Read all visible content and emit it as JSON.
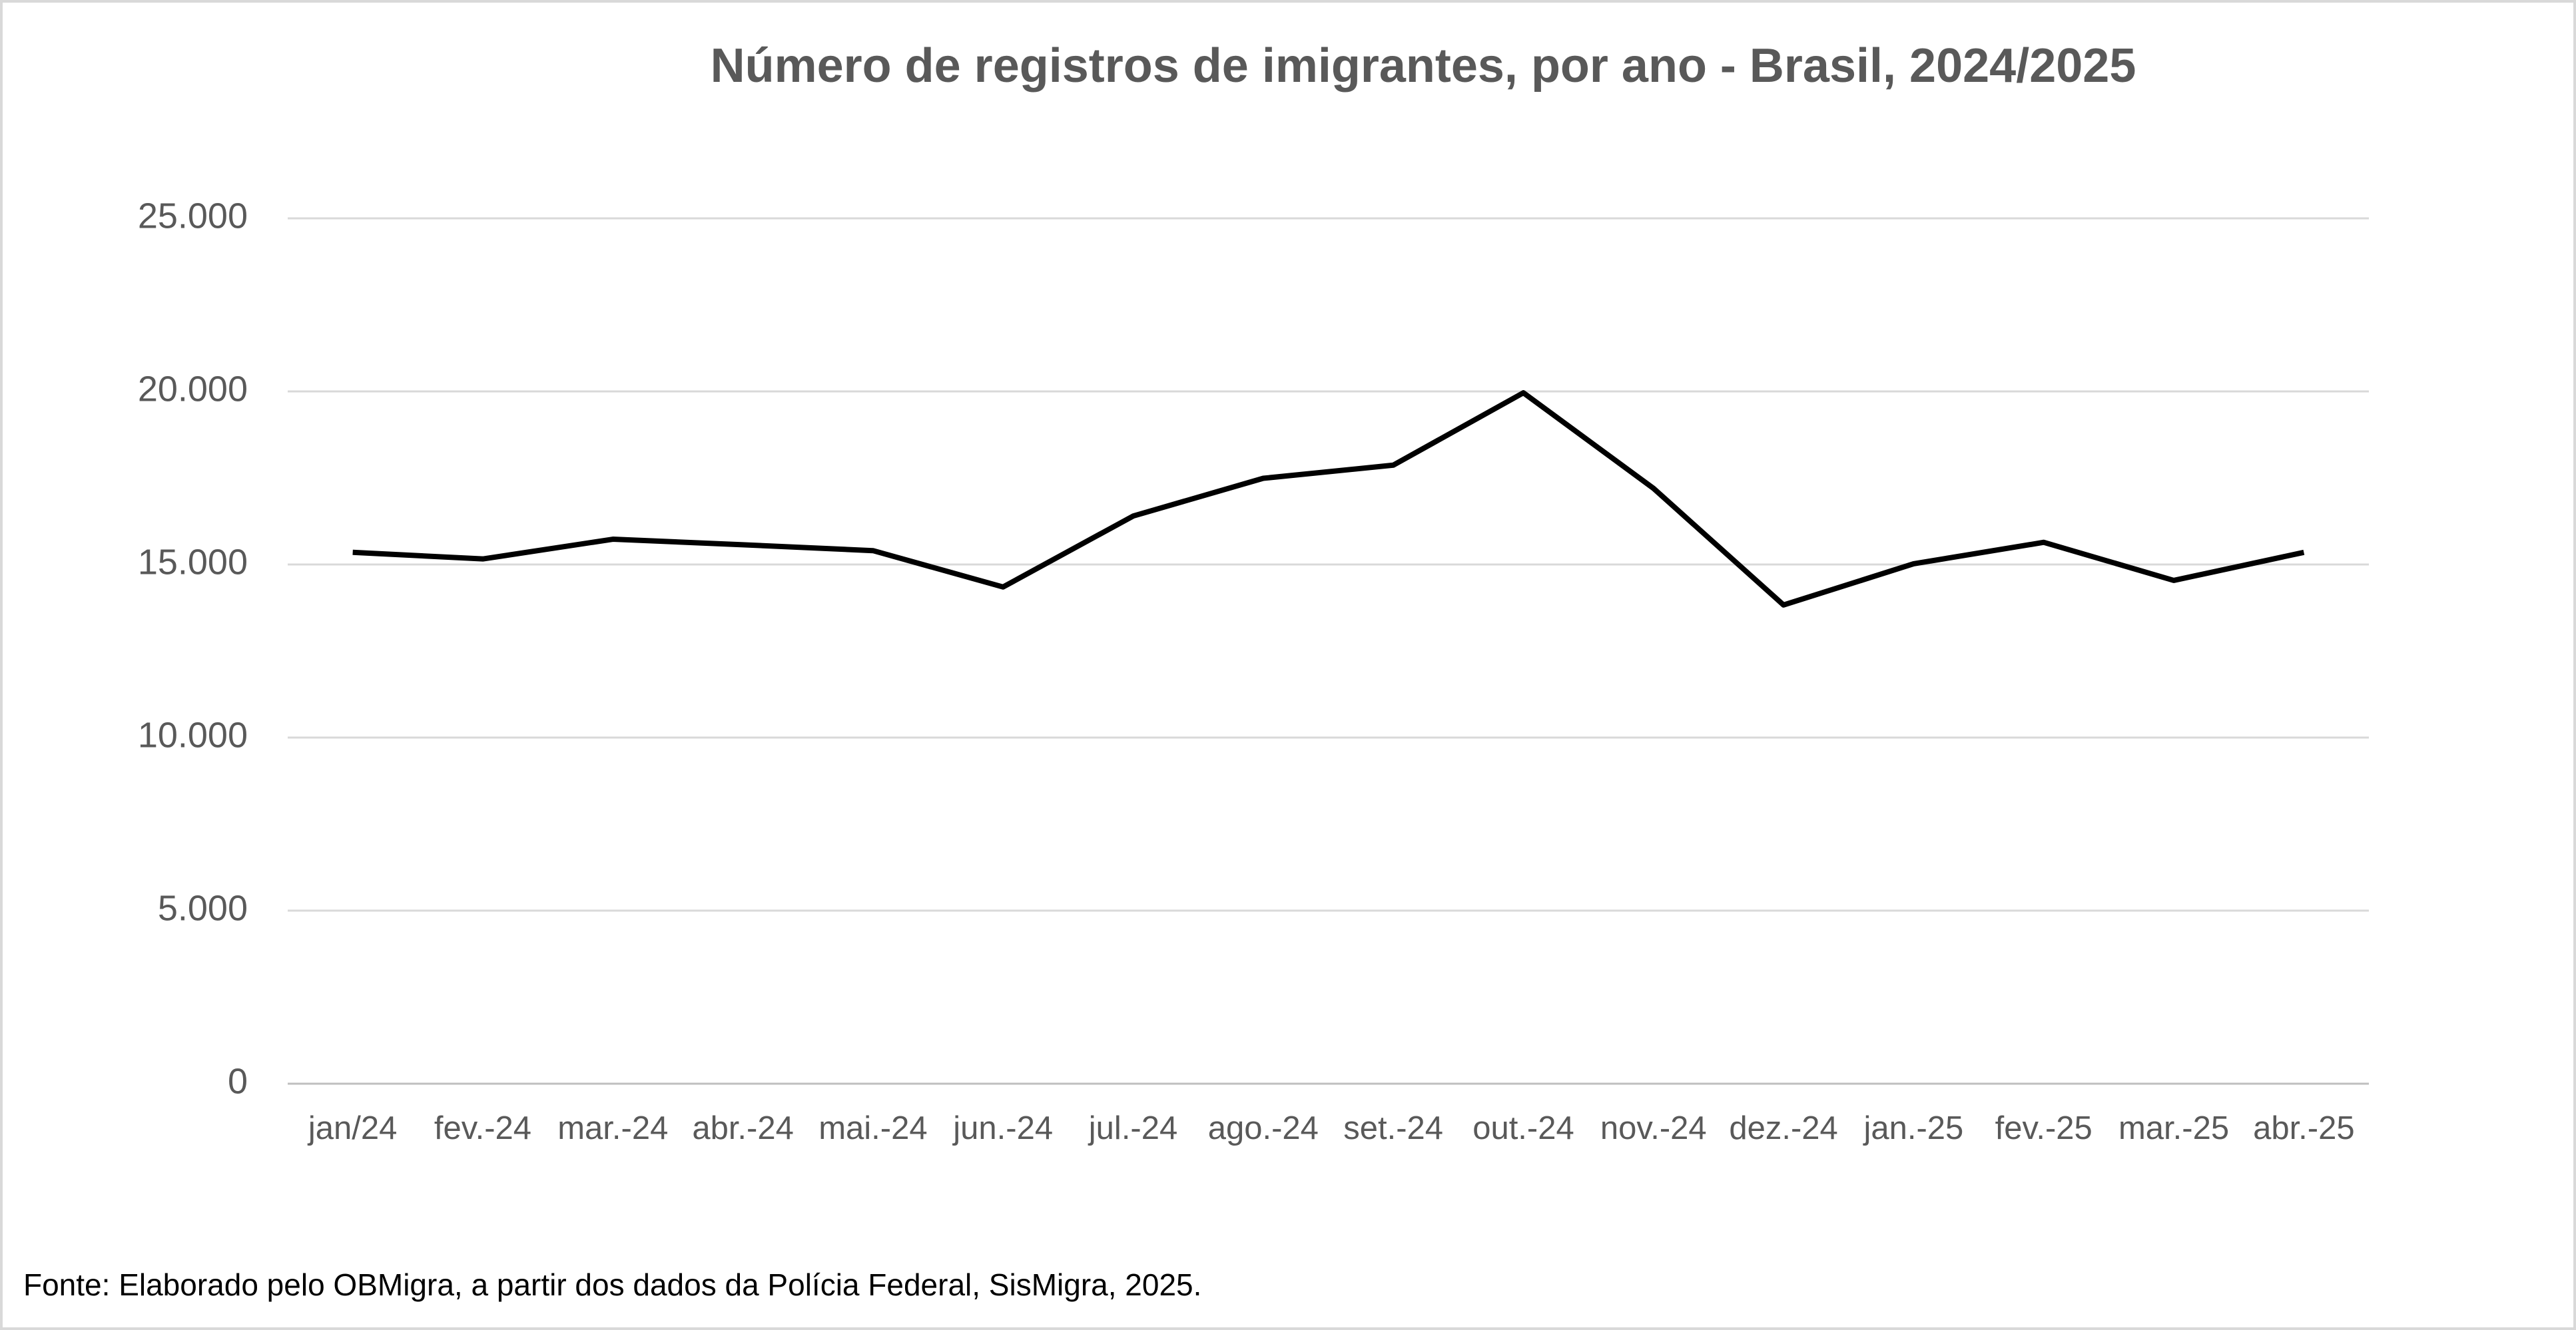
{
  "chart_data": {
    "type": "line",
    "title": "Número de registros de imigrantes, por ano - Brasil, 2024/2025",
    "categories": [
      "jan/24",
      "fev.-24",
      "mar.-24",
      "abr.-24",
      "mai.-24",
      "jun.-24",
      "jul.-24",
      "ago.-24",
      "set.-24",
      "out.-24",
      "nov.-24",
      "dez.-24",
      "jan.-25",
      "fev.-25",
      "mar.-25",
      "abr.-25"
    ],
    "values": [
      15350,
      15160,
      15730,
      15570,
      15400,
      14350,
      16400,
      17490,
      17870,
      19960,
      17200,
      13830,
      15020,
      15640,
      14540,
      15350
    ],
    "color": "#000000",
    "ylim": [
      0,
      25000
    ],
    "yticks": [
      0,
      {
        "value": 5000,
        "label": "5.000"
      },
      {
        "value": 10000,
        "label": "10.000"
      },
      {
        "value": 15000,
        "label": "15.000"
      },
      {
        "value": 20000,
        "label": "20.000"
      },
      {
        "value": 25000,
        "label": "25.000"
      }
    ],
    "grid": true,
    "source": "Fonte: Elaborado pelo OBMigra, a partir dos dados da Polícia Federal, SisMigra, 2025."
  }
}
